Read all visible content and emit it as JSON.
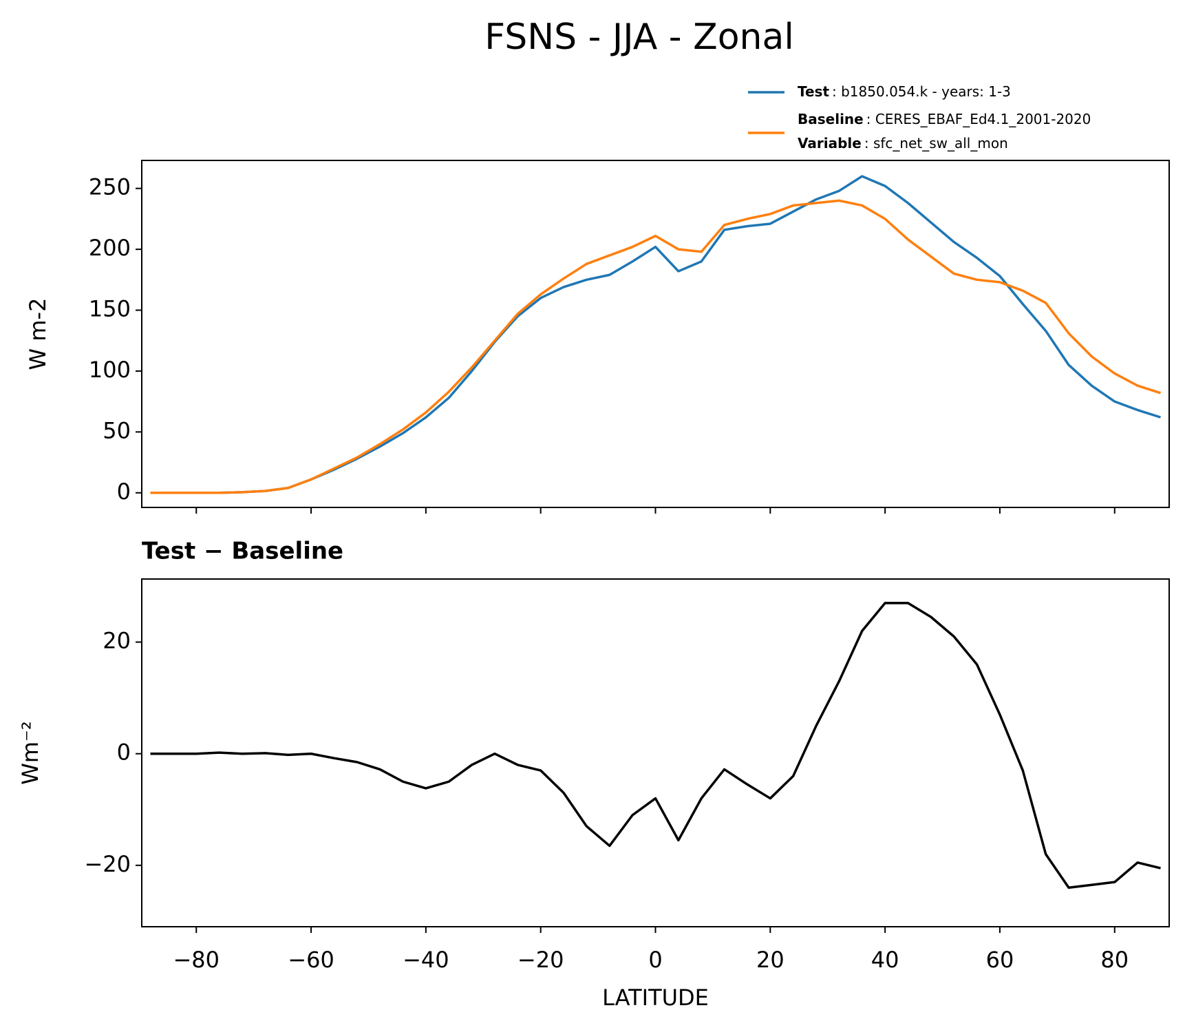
{
  "title": "FSNS - JJA - Zonal",
  "chart_data": [
    {
      "type": "line",
      "ylabel": "W m-2",
      "x": [
        -88,
        -84,
        -80,
        -76,
        -72,
        -68,
        -64,
        -60,
        -56,
        -52,
        -48,
        -44,
        -40,
        -36,
        -32,
        -28,
        -24,
        -20,
        -16,
        -12,
        -8,
        -4,
        0,
        4,
        8,
        12,
        16,
        20,
        24,
        28,
        32,
        36,
        40,
        44,
        48,
        52,
        56,
        60,
        64,
        68,
        72,
        76,
        80,
        84,
        88
      ],
      "series": [
        {
          "name": "Test",
          "detail": ": b1850.054.k - years: 1-3",
          "color": "#1f77b4",
          "values": [
            0,
            0,
            0,
            0,
            0.5,
            1.5,
            4,
            11,
            19,
            28,
            38,
            49,
            62,
            78,
            100,
            124,
            145,
            160,
            169,
            175,
            179,
            190,
            202,
            182,
            190,
            216,
            219,
            221,
            231,
            241,
            248,
            260,
            252,
            238,
            222,
            206,
            193,
            178,
            155,
            133,
            105,
            88,
            75,
            68,
            62
          ]
        },
        {
          "name": "Baseline",
          "detail": ": CERES_EBAF_Ed4.1_2001-2020",
          "color": "#ff7f0e",
          "values": [
            0,
            0,
            0,
            0,
            0.5,
            1.5,
            4,
            11,
            20,
            29,
            40,
            52,
            66,
            83,
            103,
            125,
            147,
            163,
            176,
            188,
            195,
            202,
            211,
            200,
            198,
            220,
            225,
            229,
            236,
            238,
            240,
            236,
            225,
            208,
            194,
            180,
            175,
            173,
            166,
            156,
            131,
            112,
            98,
            88,
            82
          ]
        }
      ],
      "legend_note": {
        "name": "Variable",
        "detail": ": sfc_net_sw_all_mon"
      },
      "xlim": [
        -89.5,
        89.5
      ],
      "xticks": [
        -80,
        -60,
        -40,
        -20,
        0,
        20,
        40,
        60,
        80
      ],
      "ylim": [
        -12,
        273
      ],
      "yticks": [
        0,
        50,
        100,
        150,
        200,
        250
      ]
    },
    {
      "type": "line",
      "title": "Test − Baseline",
      "xlabel": "LATITUDE",
      "ylabel": "Wm⁻²",
      "x": [
        -88,
        -84,
        -80,
        -76,
        -72,
        -68,
        -64,
        -60,
        -56,
        -52,
        -48,
        -44,
        -40,
        -36,
        -32,
        -28,
        -24,
        -20,
        -16,
        -12,
        -8,
        -4,
        0,
        4,
        8,
        12,
        16,
        20,
        24,
        28,
        32,
        36,
        40,
        44,
        48,
        52,
        56,
        60,
        64,
        68,
        72,
        76,
        80,
        84,
        88
      ],
      "series": [
        {
          "name": "Test − Baseline",
          "color": "#000000",
          "values": [
            0,
            0,
            0,
            0.2,
            0,
            0.1,
            -0.2,
            0,
            -0.8,
            -1.5,
            -2.8,
            -5,
            -6.2,
            -5,
            -2,
            0,
            -2,
            -3,
            -7,
            -13,
            -16.5,
            -11,
            -8,
            -15.5,
            -8,
            -2.8,
            -5.5,
            -8,
            -4,
            5,
            13,
            22,
            27,
            27,
            24.5,
            21,
            16,
            7,
            -3,
            -18,
            -24,
            -23.5,
            -23,
            -19.5,
            -20.5
          ]
        }
      ],
      "xlim": [
        -89.5,
        89.5
      ],
      "xticks": [
        {
          "value": -80,
          "label": "−80"
        },
        {
          "value": -60,
          "label": "−60"
        },
        {
          "value": -40,
          "label": "−40"
        },
        {
          "value": -20,
          "label": "−20"
        },
        0,
        20,
        40,
        60,
        80
      ],
      "ylim": [
        -31,
        31.3
      ],
      "yticks": [
        {
          "value": -20,
          "label": "−20"
        },
        0,
        20
      ]
    }
  ]
}
